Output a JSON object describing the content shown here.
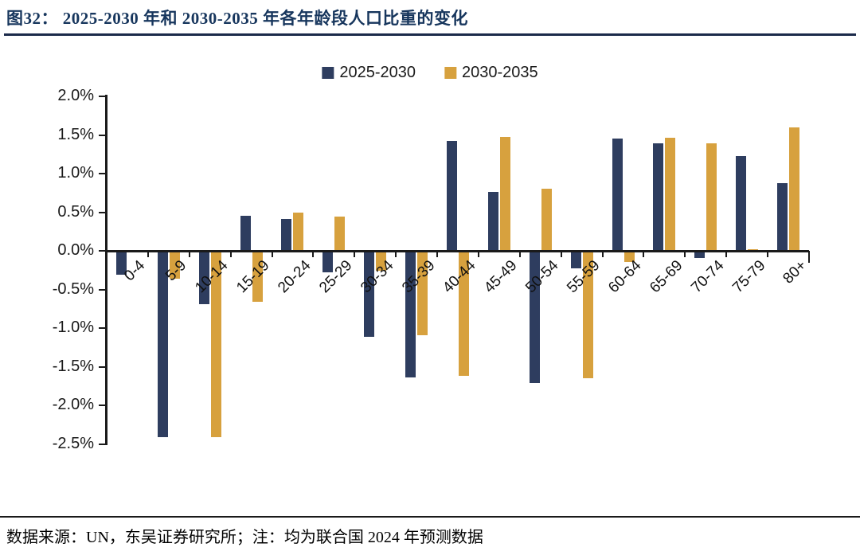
{
  "title": "图32：  2025-2030 年和 2030-2035 年各年龄段人口比重的变化",
  "source_note": "数据来源：UN，东吴证券研究所；注：均为联合国 2024 年预测数据",
  "colors": {
    "series_2025_2030": "#2E3D5F",
    "series_2030_2035": "#D7A13E",
    "title_text": "#17365D",
    "title_rule": "#1B2A4A",
    "axis": "#1a1a1a"
  },
  "chart_data": {
    "type": "bar",
    "title": "图32：2025-2030 年和 2030-2035 年各年龄段人口比重的变化",
    "unit": "%",
    "grid": false,
    "legend_position": "top-center",
    "ylim": [
      -2.5,
      2.0
    ],
    "ytick_step": 0.5,
    "yticks": [
      2.0,
      1.5,
      1.0,
      0.5,
      0.0,
      -0.5,
      -1.0,
      -1.5,
      -2.0,
      -2.5
    ],
    "ytick_labels": [
      "2.0%",
      "1.5%",
      "1.0%",
      "0.5%",
      "0.0%",
      "-0.5%",
      "-1.0%",
      "-1.5%",
      "-2.0%",
      "-2.5%"
    ],
    "categories": [
      "0-4",
      "5-9",
      "10-14",
      "15-19",
      "20-24",
      "25-29",
      "30-34",
      "35-39",
      "40-44",
      "45-49",
      "50-54",
      "55-59",
      "60-64",
      "65-69",
      "70-74",
      "75-79",
      "80+"
    ],
    "series": [
      {
        "name": "2025-2030",
        "color": "#2E3D5F",
        "values": [
          -0.3,
          -2.4,
          -0.68,
          0.46,
          0.41,
          -0.27,
          -1.1,
          -1.62,
          1.42,
          0.76,
          -1.7,
          -0.21,
          1.45,
          1.39,
          -0.08,
          1.23,
          0.88
        ]
      },
      {
        "name": "2030-2035",
        "color": "#D7A13E",
        "values": [
          0.0,
          -0.35,
          -2.4,
          -0.65,
          0.5,
          0.45,
          -0.25,
          -1.08,
          -1.6,
          1.47,
          0.81,
          -1.63,
          -0.13,
          1.46,
          1.39,
          0.02,
          1.6
        ]
      }
    ]
  }
}
